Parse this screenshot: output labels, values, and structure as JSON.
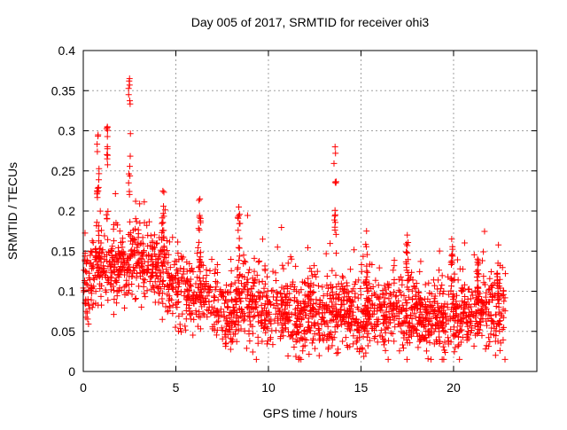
{
  "chart_data": {
    "type": "scatter",
    "title": "Day 005 of 2017, SRMTID for receiver ohi3",
    "xlabel": "GPS time / hours",
    "ylabel": "SRMTID / TECUs",
    "xlim": [
      0,
      24.5
    ],
    "ylim": [
      0,
      0.4
    ],
    "x_ticks": [
      0,
      5,
      10,
      15,
      20
    ],
    "x_tick_labels": [
      "0",
      "5",
      "10",
      "15",
      "20"
    ],
    "y_ticks": [
      0,
      0.05,
      0.1,
      0.15,
      0.2,
      0.25,
      0.3,
      0.35,
      0.4
    ],
    "y_tick_labels": [
      "0",
      "0.05",
      "0.1",
      "0.15",
      "0.2",
      "0.25",
      "0.3",
      "0.35",
      "0.4"
    ],
    "grid": true,
    "marker": "plus",
    "color": "#ff0000",
    "data_end_hour": 22.8,
    "baseline": [
      [
        0.0,
        0.1
      ],
      [
        0.5,
        0.12
      ],
      [
        1.0,
        0.13
      ],
      [
        1.5,
        0.125
      ],
      [
        2.0,
        0.13
      ],
      [
        2.5,
        0.14
      ],
      [
        3.0,
        0.14
      ],
      [
        3.5,
        0.13
      ],
      [
        4.0,
        0.125
      ],
      [
        4.5,
        0.11
      ],
      [
        5.0,
        0.1
      ],
      [
        5.5,
        0.1
      ],
      [
        6.0,
        0.1
      ],
      [
        6.5,
        0.095
      ],
      [
        7.0,
        0.09
      ],
      [
        7.5,
        0.07
      ],
      [
        8.0,
        0.06
      ],
      [
        8.5,
        0.09
      ],
      [
        9.0,
        0.08
      ],
      [
        10.0,
        0.075
      ],
      [
        11.0,
        0.075
      ],
      [
        12.0,
        0.07
      ],
      [
        13.0,
        0.07
      ],
      [
        14.0,
        0.075
      ],
      [
        15.0,
        0.065
      ],
      [
        16.0,
        0.07
      ],
      [
        17.0,
        0.07
      ],
      [
        18.0,
        0.07
      ],
      [
        19.0,
        0.065
      ],
      [
        20.0,
        0.06
      ],
      [
        21.0,
        0.075
      ],
      [
        22.0,
        0.07
      ],
      [
        22.8,
        0.075
      ]
    ],
    "spikes": [
      {
        "center": 0.8,
        "width": 0.12,
        "peak": 0.295
      },
      {
        "center": 1.3,
        "width": 0.1,
        "peak": 0.305
      },
      {
        "center": 2.5,
        "width": 0.12,
        "peak": 0.365
      },
      {
        "center": 4.3,
        "width": 0.15,
        "peak": 0.225
      },
      {
        "center": 6.3,
        "width": 0.15,
        "peak": 0.215
      },
      {
        "center": 8.4,
        "width": 0.15,
        "peak": 0.205
      },
      {
        "center": 13.6,
        "width": 0.12,
        "peak": 0.28
      },
      {
        "center": 15.3,
        "width": 0.12,
        "peak": 0.175
      },
      {
        "center": 17.5,
        "width": 0.12,
        "peak": 0.17
      },
      {
        "center": 19.9,
        "width": 0.1,
        "peak": 0.165
      },
      {
        "center": 21.3,
        "width": 0.12,
        "peak": 0.14
      },
      {
        "center": 22.4,
        "width": 0.12,
        "peak": 0.135
      }
    ],
    "min_value": 0.015,
    "max_value": 0.365
  }
}
